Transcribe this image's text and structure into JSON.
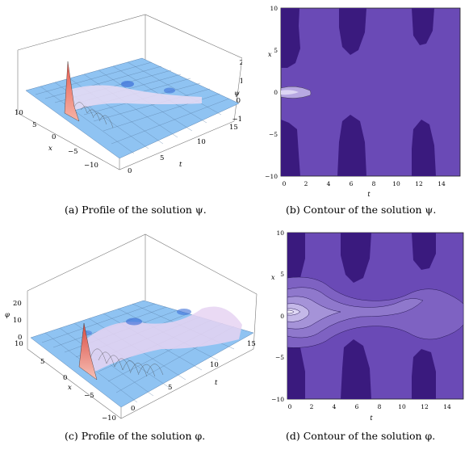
{
  "captions": {
    "a": "(a)  Profile of the solution ψ.",
    "b": "(b)  Contour of the solution ψ.",
    "c": "(c)  Profile of the solution φ.",
    "d": "(d)  Contour of the solution φ."
  },
  "colors": {
    "contour_dark": "#3a1a7e",
    "contour_base": "#6a4ab6",
    "contour_mid": "#8f78cc",
    "contour_light": "#b7a8e2",
    "contour_lightest": "#ddd6f4",
    "surface_blue": "#8fc3f2",
    "surface_peak": "#f06a5a"
  },
  "plot_a": {
    "z_ticks": [
      "−1",
      "0",
      "1",
      "2"
    ],
    "z_label": "ψ",
    "x_ticks": [
      "10",
      "5",
      "0",
      "−5",
      "−10"
    ],
    "x_label": "x",
    "t_ticks": [
      "0",
      "5",
      "10",
      "15"
    ],
    "t_label": "t"
  },
  "plot_b": {
    "y_ticks": [
      "10",
      "5",
      "0",
      "−5",
      "−10"
    ],
    "y_label": "x",
    "x_ticks": [
      "0",
      "2",
      "4",
      "6",
      "8",
      "10",
      "12",
      "14"
    ],
    "x_label": "t"
  },
  "plot_c": {
    "z_ticks": [
      "0",
      "10",
      "20"
    ],
    "z_label": "φ",
    "x_ticks": [
      "10",
      "5",
      "0",
      "−5",
      "−10"
    ],
    "x_label": "x",
    "t_ticks": [
      "0",
      "5",
      "10",
      "15"
    ],
    "t_label": "t"
  },
  "plot_d": {
    "y_ticks": [
      "10",
      "5",
      "0",
      "−5",
      "−10"
    ],
    "y_label": "x",
    "x_ticks": [
      "0",
      "2",
      "4",
      "6",
      "8",
      "10",
      "12",
      "14"
    ],
    "x_label": "t"
  }
}
